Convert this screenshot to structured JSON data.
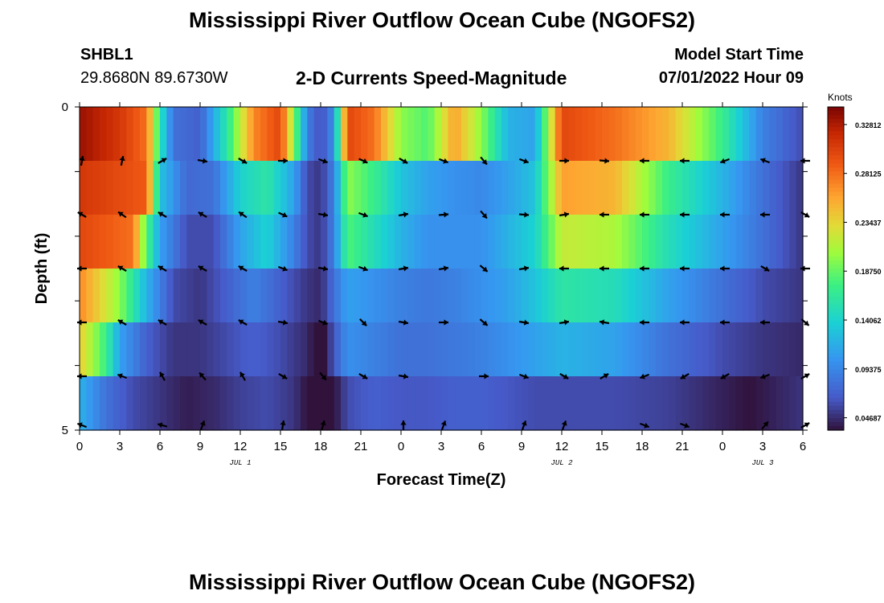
{
  "header": {
    "title": "Mississippi River Outflow Ocean Cube (NGOFS2)",
    "station": "SHBL1",
    "location": "29.8680N  89.6730W",
    "subtitle": "2-D Currents Speed-Magnitude",
    "model_start_label": "Model Start Time",
    "model_start_value": "07/01/2022 Hour 09"
  },
  "footer": {
    "title": "Mississippi River Outflow Ocean Cube (NGOFS2)"
  },
  "chart_data": {
    "type": "heatmap",
    "xlabel": "Forecast Time(Z)",
    "ylabel": "Depth (ft)",
    "x_ticks": [
      "0",
      "3",
      "6",
      "9",
      "12",
      "15",
      "18",
      "21",
      "0",
      "3",
      "6",
      "9",
      "12",
      "15",
      "18",
      "21",
      "0",
      "3",
      "6"
    ],
    "date_labels": [
      {
        "text": "JUL 1",
        "tick": 4
      },
      {
        "text": "JUL 2",
        "tick": 12
      },
      {
        "text": "JUL 3",
        "tick": 17
      }
    ],
    "y_ticks": [
      "0",
      "",
      "",
      "",
      "",
      "5"
    ],
    "xlim": [
      0,
      54
    ],
    "ylim": [
      0,
      5
    ],
    "colorbar": {
      "unit": "Knots",
      "ticks": [
        "0.32812",
        "0.28125",
        "0.23437",
        "0.18750",
        "0.14062",
        "0.09375",
        "0.04687"
      ],
      "tick_values": [
        0.32812,
        0.28125,
        0.23437,
        0.1875,
        0.14062,
        0.09375,
        0.04687
      ],
      "range": [
        0.035,
        0.345
      ]
    },
    "layers": [
      {
        "speed_keys": [
          [
            0,
            0.335
          ],
          [
            3,
            0.31
          ],
          [
            5,
            0.28
          ],
          [
            6,
            0.16
          ],
          [
            7,
            0.08
          ],
          [
            9,
            0.07
          ],
          [
            11,
            0.16
          ],
          [
            13,
            0.27
          ],
          [
            15,
            0.3
          ],
          [
            16,
            0.2
          ],
          [
            17,
            0.09
          ],
          [
            18,
            0.06
          ],
          [
            19,
            0.1
          ],
          [
            20,
            0.3
          ],
          [
            22,
            0.28
          ],
          [
            24,
            0.2
          ],
          [
            26,
            0.18
          ],
          [
            28,
            0.26
          ],
          [
            30,
            0.2
          ],
          [
            32,
            0.12
          ],
          [
            34,
            0.11
          ],
          [
            36,
            0.3
          ],
          [
            40,
            0.28
          ],
          [
            44,
            0.25
          ],
          [
            48,
            0.17
          ],
          [
            51,
            0.09
          ],
          [
            54,
            0.06
          ]
        ],
        "arrows": [
          10,
          12,
          60,
          100,
          120,
          90,
          110,
          115,
          120,
          110,
          140,
          110,
          90,
          95,
          270,
          270,
          250,
          290,
          270
        ]
      },
      {
        "speed_keys": [
          [
            0,
            0.31
          ],
          [
            5,
            0.29
          ],
          [
            6,
            0.13
          ],
          [
            8,
            0.075
          ],
          [
            10,
            0.08
          ],
          [
            12,
            0.14
          ],
          [
            14,
            0.16
          ],
          [
            16,
            0.11
          ],
          [
            17,
            0.06
          ],
          [
            18,
            0.05
          ],
          [
            19,
            0.09
          ],
          [
            20,
            0.2
          ],
          [
            22,
            0.17
          ],
          [
            24,
            0.13
          ],
          [
            26,
            0.11
          ],
          [
            28,
            0.1
          ],
          [
            30,
            0.095
          ],
          [
            32,
            0.11
          ],
          [
            34,
            0.13
          ],
          [
            36,
            0.26
          ],
          [
            40,
            0.25
          ],
          [
            44,
            0.17
          ],
          [
            48,
            0.12
          ],
          [
            51,
            0.08
          ],
          [
            54,
            0.05
          ]
        ],
        "arrows": [
          300,
          305,
          300,
          300,
          305,
          115,
          100,
          110,
          80,
          85,
          140,
          95,
          80,
          270,
          270,
          270,
          270,
          270,
          120
        ]
      },
      {
        "speed_keys": [
          [
            0,
            0.3
          ],
          [
            4,
            0.28
          ],
          [
            5,
            0.18
          ],
          [
            6,
            0.11
          ],
          [
            8,
            0.06
          ],
          [
            10,
            0.06
          ],
          [
            12,
            0.11
          ],
          [
            14,
            0.14
          ],
          [
            16,
            0.09
          ],
          [
            17,
            0.06
          ],
          [
            18,
            0.05
          ],
          [
            19,
            0.09
          ],
          [
            20,
            0.18
          ],
          [
            22,
            0.15
          ],
          [
            24,
            0.12
          ],
          [
            26,
            0.1
          ],
          [
            28,
            0.1
          ],
          [
            30,
            0.1
          ],
          [
            32,
            0.12
          ],
          [
            34,
            0.14
          ],
          [
            36,
            0.22
          ],
          [
            40,
            0.21
          ],
          [
            44,
            0.15
          ],
          [
            48,
            0.11
          ],
          [
            51,
            0.08
          ],
          [
            54,
            0.05
          ]
        ],
        "arrows": [
          270,
          300,
          300,
          300,
          300,
          110,
          100,
          110,
          80,
          80,
          130,
          80,
          270,
          270,
          270,
          270,
          270,
          120,
          270
        ]
      },
      {
        "speed_keys": [
          [
            0,
            0.27
          ],
          [
            3,
            0.2
          ],
          [
            5,
            0.12
          ],
          [
            7,
            0.06
          ],
          [
            9,
            0.05
          ],
          [
            11,
            0.07
          ],
          [
            13,
            0.09
          ],
          [
            15,
            0.07
          ],
          [
            17,
            0.05
          ],
          [
            18,
            0.045
          ],
          [
            19,
            0.08
          ],
          [
            20,
            0.11
          ],
          [
            22,
            0.1
          ],
          [
            24,
            0.09
          ],
          [
            26,
            0.085
          ],
          [
            28,
            0.09
          ],
          [
            30,
            0.1
          ],
          [
            32,
            0.11
          ],
          [
            34,
            0.13
          ],
          [
            36,
            0.16
          ],
          [
            40,
            0.15
          ],
          [
            44,
            0.11
          ],
          [
            48,
            0.08
          ],
          [
            51,
            0.06
          ],
          [
            54,
            0.05
          ]
        ],
        "arrows": [
          270,
          300,
          300,
          300,
          300,
          100,
          110,
          135,
          100,
          90,
          130,
          100,
          80,
          280,
          270,
          270,
          270,
          270,
          130
        ]
      },
      {
        "speed_keys": [
          [
            0,
            0.24
          ],
          [
            2,
            0.17
          ],
          [
            3,
            0.11
          ],
          [
            5,
            0.07
          ],
          [
            7,
            0.05
          ],
          [
            9,
            0.05
          ],
          [
            11,
            0.06
          ],
          [
            13,
            0.07
          ],
          [
            15,
            0.06
          ],
          [
            17,
            0.045
          ],
          [
            18,
            0.025
          ],
          [
            19,
            0.065
          ],
          [
            20,
            0.1
          ],
          [
            22,
            0.09
          ],
          [
            24,
            0.08
          ],
          [
            26,
            0.08
          ],
          [
            28,
            0.085
          ],
          [
            30,
            0.09
          ],
          [
            32,
            0.1
          ],
          [
            34,
            0.11
          ],
          [
            36,
            0.12
          ],
          [
            40,
            0.11
          ],
          [
            44,
            0.08
          ],
          [
            48,
            0.06
          ],
          [
            51,
            0.05
          ],
          [
            54,
            0.045
          ]
        ],
        "arrows": [
          270,
          290,
          330,
          320,
          330,
          120,
          140,
          120,
          100,
          90,
          110,
          120,
          60,
          250,
          240,
          240,
          250,
          60
        ]
      },
      {
        "speed_keys": [
          [
            0,
            0.12
          ],
          [
            2,
            0.08
          ],
          [
            4,
            0.06
          ],
          [
            6,
            0.05
          ],
          [
            8,
            0.04
          ],
          [
            10,
            0.045
          ],
          [
            12,
            0.055
          ],
          [
            14,
            0.06
          ],
          [
            16,
            0.05
          ],
          [
            17,
            0.035
          ],
          [
            18,
            0.0
          ],
          [
            19,
            0.035
          ],
          [
            20,
            0.06
          ],
          [
            22,
            0.07
          ],
          [
            24,
            0.065
          ],
          [
            26,
            0.065
          ],
          [
            28,
            0.07
          ],
          [
            30,
            0.07
          ],
          [
            32,
            0.065
          ],
          [
            34,
            0.06
          ],
          [
            36,
            0.06
          ],
          [
            40,
            0.06
          ],
          [
            44,
            0.055
          ],
          [
            50,
            0.035
          ],
          [
            54,
            0.05
          ]
        ],
        "arrows": [
          290,
          285,
          20,
          10,
          15,
          0,
          20,
          20,
          20,
          110,
          110,
          40,
          60
        ]
      }
    ]
  }
}
